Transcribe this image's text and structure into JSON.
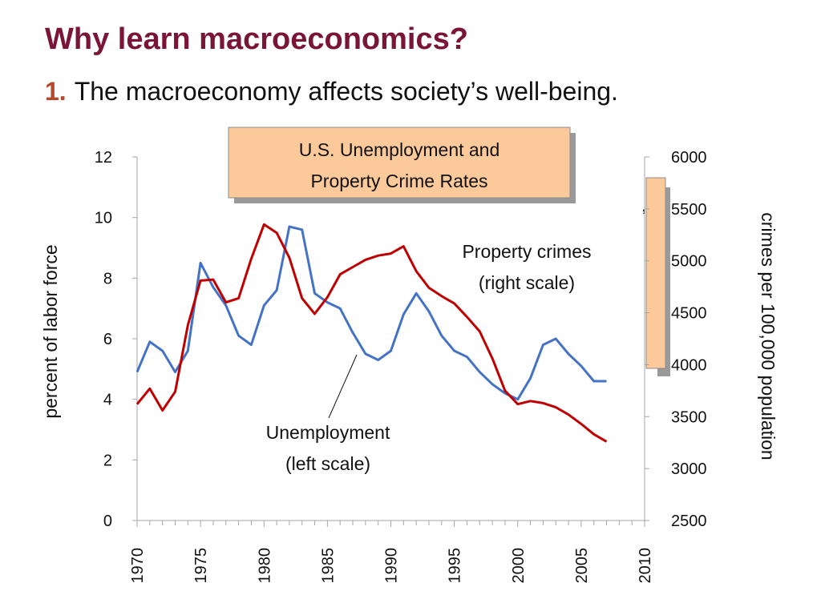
{
  "slide": {
    "title": "Why learn macroeconomics?",
    "point_number": "1.",
    "point_text": "The macroeconomy affects society’s well-being."
  },
  "chart_data": {
    "type": "line",
    "title": "U.S. Unemployment and Property Crime Rates",
    "title_lines": [
      "U.S. Unemployment and",
      "Property Crime Rates"
    ],
    "ylabel_left": "percent of labor force",
    "ylabel_right": "crimes per 100,000 population",
    "x_ticks": [
      1970,
      1975,
      1980,
      1985,
      1990,
      1995,
      2000,
      2005,
      2010
    ],
    "xlim": [
      1970,
      2010
    ],
    "ylim_left": [
      0,
      12
    ],
    "ylim_right": [
      2500,
      6000
    ],
    "y_ticks_left": [
      0,
      2,
      4,
      6,
      8,
      10,
      12
    ],
    "y_ticks_right": [
      2500,
      3000,
      3500,
      4000,
      4500,
      5000,
      5500,
      6000
    ],
    "grid": false,
    "series": [
      {
        "name": "Unemployment",
        "axis": "left",
        "color": "#4472c4",
        "x": [
          1970,
          1971,
          1972,
          1973,
          1974,
          1975,
          1976,
          1977,
          1978,
          1979,
          1980,
          1981,
          1982,
          1983,
          1984,
          1985,
          1986,
          1987,
          1988,
          1989,
          1990,
          1991,
          1992,
          1993,
          1994,
          1995,
          1996,
          1997,
          1998,
          1999,
          2000,
          2001,
          2002,
          2003,
          2004,
          2005,
          2006,
          2007
        ],
        "values": [
          4.9,
          5.9,
          5.6,
          4.9,
          5.6,
          8.5,
          7.7,
          7.1,
          6.1,
          5.8,
          7.1,
          7.6,
          9.7,
          9.6,
          7.5,
          7.2,
          7.0,
          6.2,
          5.5,
          5.3,
          5.6,
          6.8,
          7.5,
          6.9,
          6.1,
          5.6,
          5.4,
          4.9,
          4.5,
          4.2,
          4.0,
          4.7,
          5.8,
          6.0,
          5.5,
          5.1,
          4.6,
          4.6
        ]
      },
      {
        "name": "Property crimes",
        "axis": "right",
        "color": "#c00000",
        "x": [
          1970,
          1971,
          1972,
          1973,
          1974,
          1975,
          1976,
          1977,
          1978,
          1979,
          1980,
          1981,
          1982,
          1983,
          1984,
          1985,
          1986,
          1987,
          1988,
          1989,
          1990,
          1991,
          1992,
          1993,
          1994,
          1995,
          1996,
          1997,
          1998,
          1999,
          2000,
          2001,
          2002,
          2003,
          2004,
          2005,
          2006,
          2007
        ],
        "values": [
          3620,
          3770,
          3560,
          3740,
          4380,
          4810,
          4820,
          4600,
          4640,
          5020,
          5350,
          5270,
          5030,
          4640,
          4490,
          4650,
          4870,
          4940,
          5010,
          5050,
          5070,
          5140,
          4900,
          4740,
          4660,
          4590,
          4460,
          4320,
          4060,
          3750,
          3620,
          3650,
          3630,
          3590,
          3520,
          3430,
          3330,
          3260
        ]
      }
    ],
    "annotations": {
      "property_crimes": [
        "Property crimes",
        "(right scale)"
      ],
      "unemployment": [
        "Unemployment",
        "(left scale)"
      ],
      "hidden_box_glyph": ","
    }
  }
}
